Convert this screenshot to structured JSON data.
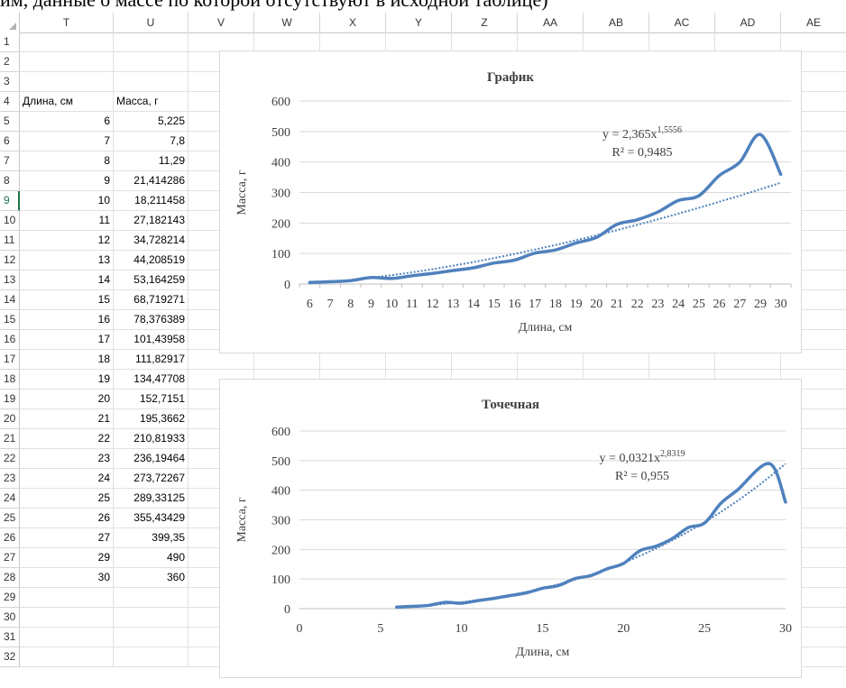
{
  "caption": "им, данные о массе по которой отсутствуют в исходной таблице)",
  "columns": [
    "T",
    "U",
    "V",
    "W",
    "X",
    "Y",
    "Z",
    "AA",
    "AB",
    "AC",
    "AD",
    "AE"
  ],
  "active_row": "9",
  "sheet": {
    "header_T": "Длина, см",
    "header_U": "Масса, г",
    "rows": [
      {
        "rn": "1",
        "t": "",
        "u": ""
      },
      {
        "rn": "2",
        "t": "",
        "u": ""
      },
      {
        "rn": "3",
        "t": "",
        "u": ""
      },
      {
        "rn": "4",
        "t": "Длина, см",
        "u": "Масса, г",
        "header": true
      },
      {
        "rn": "5",
        "t": "6",
        "u": "5,225"
      },
      {
        "rn": "6",
        "t": "7",
        "u": "7,8"
      },
      {
        "rn": "7",
        "t": "8",
        "u": "11,29"
      },
      {
        "rn": "8",
        "t": "9",
        "u": "21,414286"
      },
      {
        "rn": "9",
        "t": "10",
        "u": "18,211458"
      },
      {
        "rn": "10",
        "t": "11",
        "u": "27,182143"
      },
      {
        "rn": "11",
        "t": "12",
        "u": "34,728214"
      },
      {
        "rn": "12",
        "t": "13",
        "u": "44,208519"
      },
      {
        "rn": "13",
        "t": "14",
        "u": "53,164259"
      },
      {
        "rn": "14",
        "t": "15",
        "u": "68,719271"
      },
      {
        "rn": "15",
        "t": "16",
        "u": "78,376389"
      },
      {
        "rn": "16",
        "t": "17",
        "u": "101,43958"
      },
      {
        "rn": "17",
        "t": "18",
        "u": "111,82917"
      },
      {
        "rn": "18",
        "t": "19",
        "u": "134,47708"
      },
      {
        "rn": "19",
        "t": "20",
        "u": "152,7151"
      },
      {
        "rn": "20",
        "t": "21",
        "u": "195,3662"
      },
      {
        "rn": "21",
        "t": "22",
        "u": "210,81933"
      },
      {
        "rn": "22",
        "t": "23",
        "u": "236,19464"
      },
      {
        "rn": "23",
        "t": "24",
        "u": "273,72267"
      },
      {
        "rn": "24",
        "t": "25",
        "u": "289,33125"
      },
      {
        "rn": "25",
        "t": "26",
        "u": "355,43429"
      },
      {
        "rn": "26",
        "t": "27",
        "u": "399,35"
      },
      {
        "rn": "27",
        "t": "29",
        "u": "490"
      },
      {
        "rn": "28",
        "t": "30",
        "u": "360"
      },
      {
        "rn": "29",
        "t": "",
        "u": ""
      },
      {
        "rn": "30",
        "t": "",
        "u": ""
      },
      {
        "rn": "31",
        "t": "",
        "u": ""
      },
      {
        "rn": "32",
        "t": "",
        "u": ""
      }
    ]
  },
  "chart_data": [
    {
      "type": "line",
      "title": "График",
      "xlabel": "Длина, см",
      "ylabel": "Масса, г",
      "ylim": [
        0,
        600
      ],
      "yticks": [
        0,
        100,
        200,
        300,
        400,
        500,
        600
      ],
      "categories": [
        "6",
        "7",
        "8",
        "9",
        "10",
        "11",
        "12",
        "13",
        "14",
        "15",
        "16",
        "17",
        "18",
        "19",
        "20",
        "21",
        "22",
        "23",
        "24",
        "25",
        "26",
        "27",
        "29",
        "30"
      ],
      "series": [
        {
          "values": [
            5.225,
            7.8,
            11.29,
            21.414286,
            18.211458,
            27.182143,
            34.728214,
            44.208519,
            53.164259,
            68.719271,
            78.376389,
            101.43958,
            111.82917,
            134.47708,
            152.7151,
            195.3662,
            210.81933,
            236.19464,
            273.72267,
            289.33125,
            355.43429,
            399.35,
            490,
            360
          ],
          "color": "#4f81bd"
        }
      ],
      "trendline": {
        "a": 2.365,
        "b": 1.5556,
        "color": "#4f81bd"
      },
      "equation": {
        "prefix": "y = 2,365x",
        "exponent": "1,5556",
        "r2": "R² = 0,9485"
      },
      "grid": true,
      "legend": "none"
    },
    {
      "type": "scatter",
      "title": "Точечная",
      "xlabel": "Длина, см",
      "ylabel": "Масса, г",
      "xlim": [
        0,
        30
      ],
      "ylim": [
        0,
        600
      ],
      "xticks": [
        0,
        5,
        10,
        15,
        20,
        25,
        30
      ],
      "yticks": [
        0,
        100,
        200,
        300,
        400,
        500,
        600
      ],
      "series": [
        {
          "x": [
            6,
            7,
            8,
            9,
            10,
            11,
            12,
            13,
            14,
            15,
            16,
            17,
            18,
            19,
            20,
            21,
            22,
            23,
            24,
            25,
            26,
            27,
            29,
            30
          ],
          "y": [
            5.225,
            7.8,
            11.29,
            21.414286,
            18.211458,
            27.182143,
            34.728214,
            44.208519,
            53.164259,
            68.719271,
            78.376389,
            101.43958,
            111.82917,
            134.47708,
            152.7151,
            195.3662,
            210.81933,
            236.19464,
            273.72267,
            289.33125,
            355.43429,
            399.35,
            490,
            360
          ],
          "color": "#4f81bd"
        }
      ],
      "trendline": {
        "a": 0.0321,
        "b": 2.8319,
        "color": "#4f81bd"
      },
      "equation": {
        "prefix": "y = 0,0321x",
        "exponent": "2,8319",
        "r2": "R² = 0,955"
      },
      "grid": true,
      "legend": "none"
    }
  ]
}
